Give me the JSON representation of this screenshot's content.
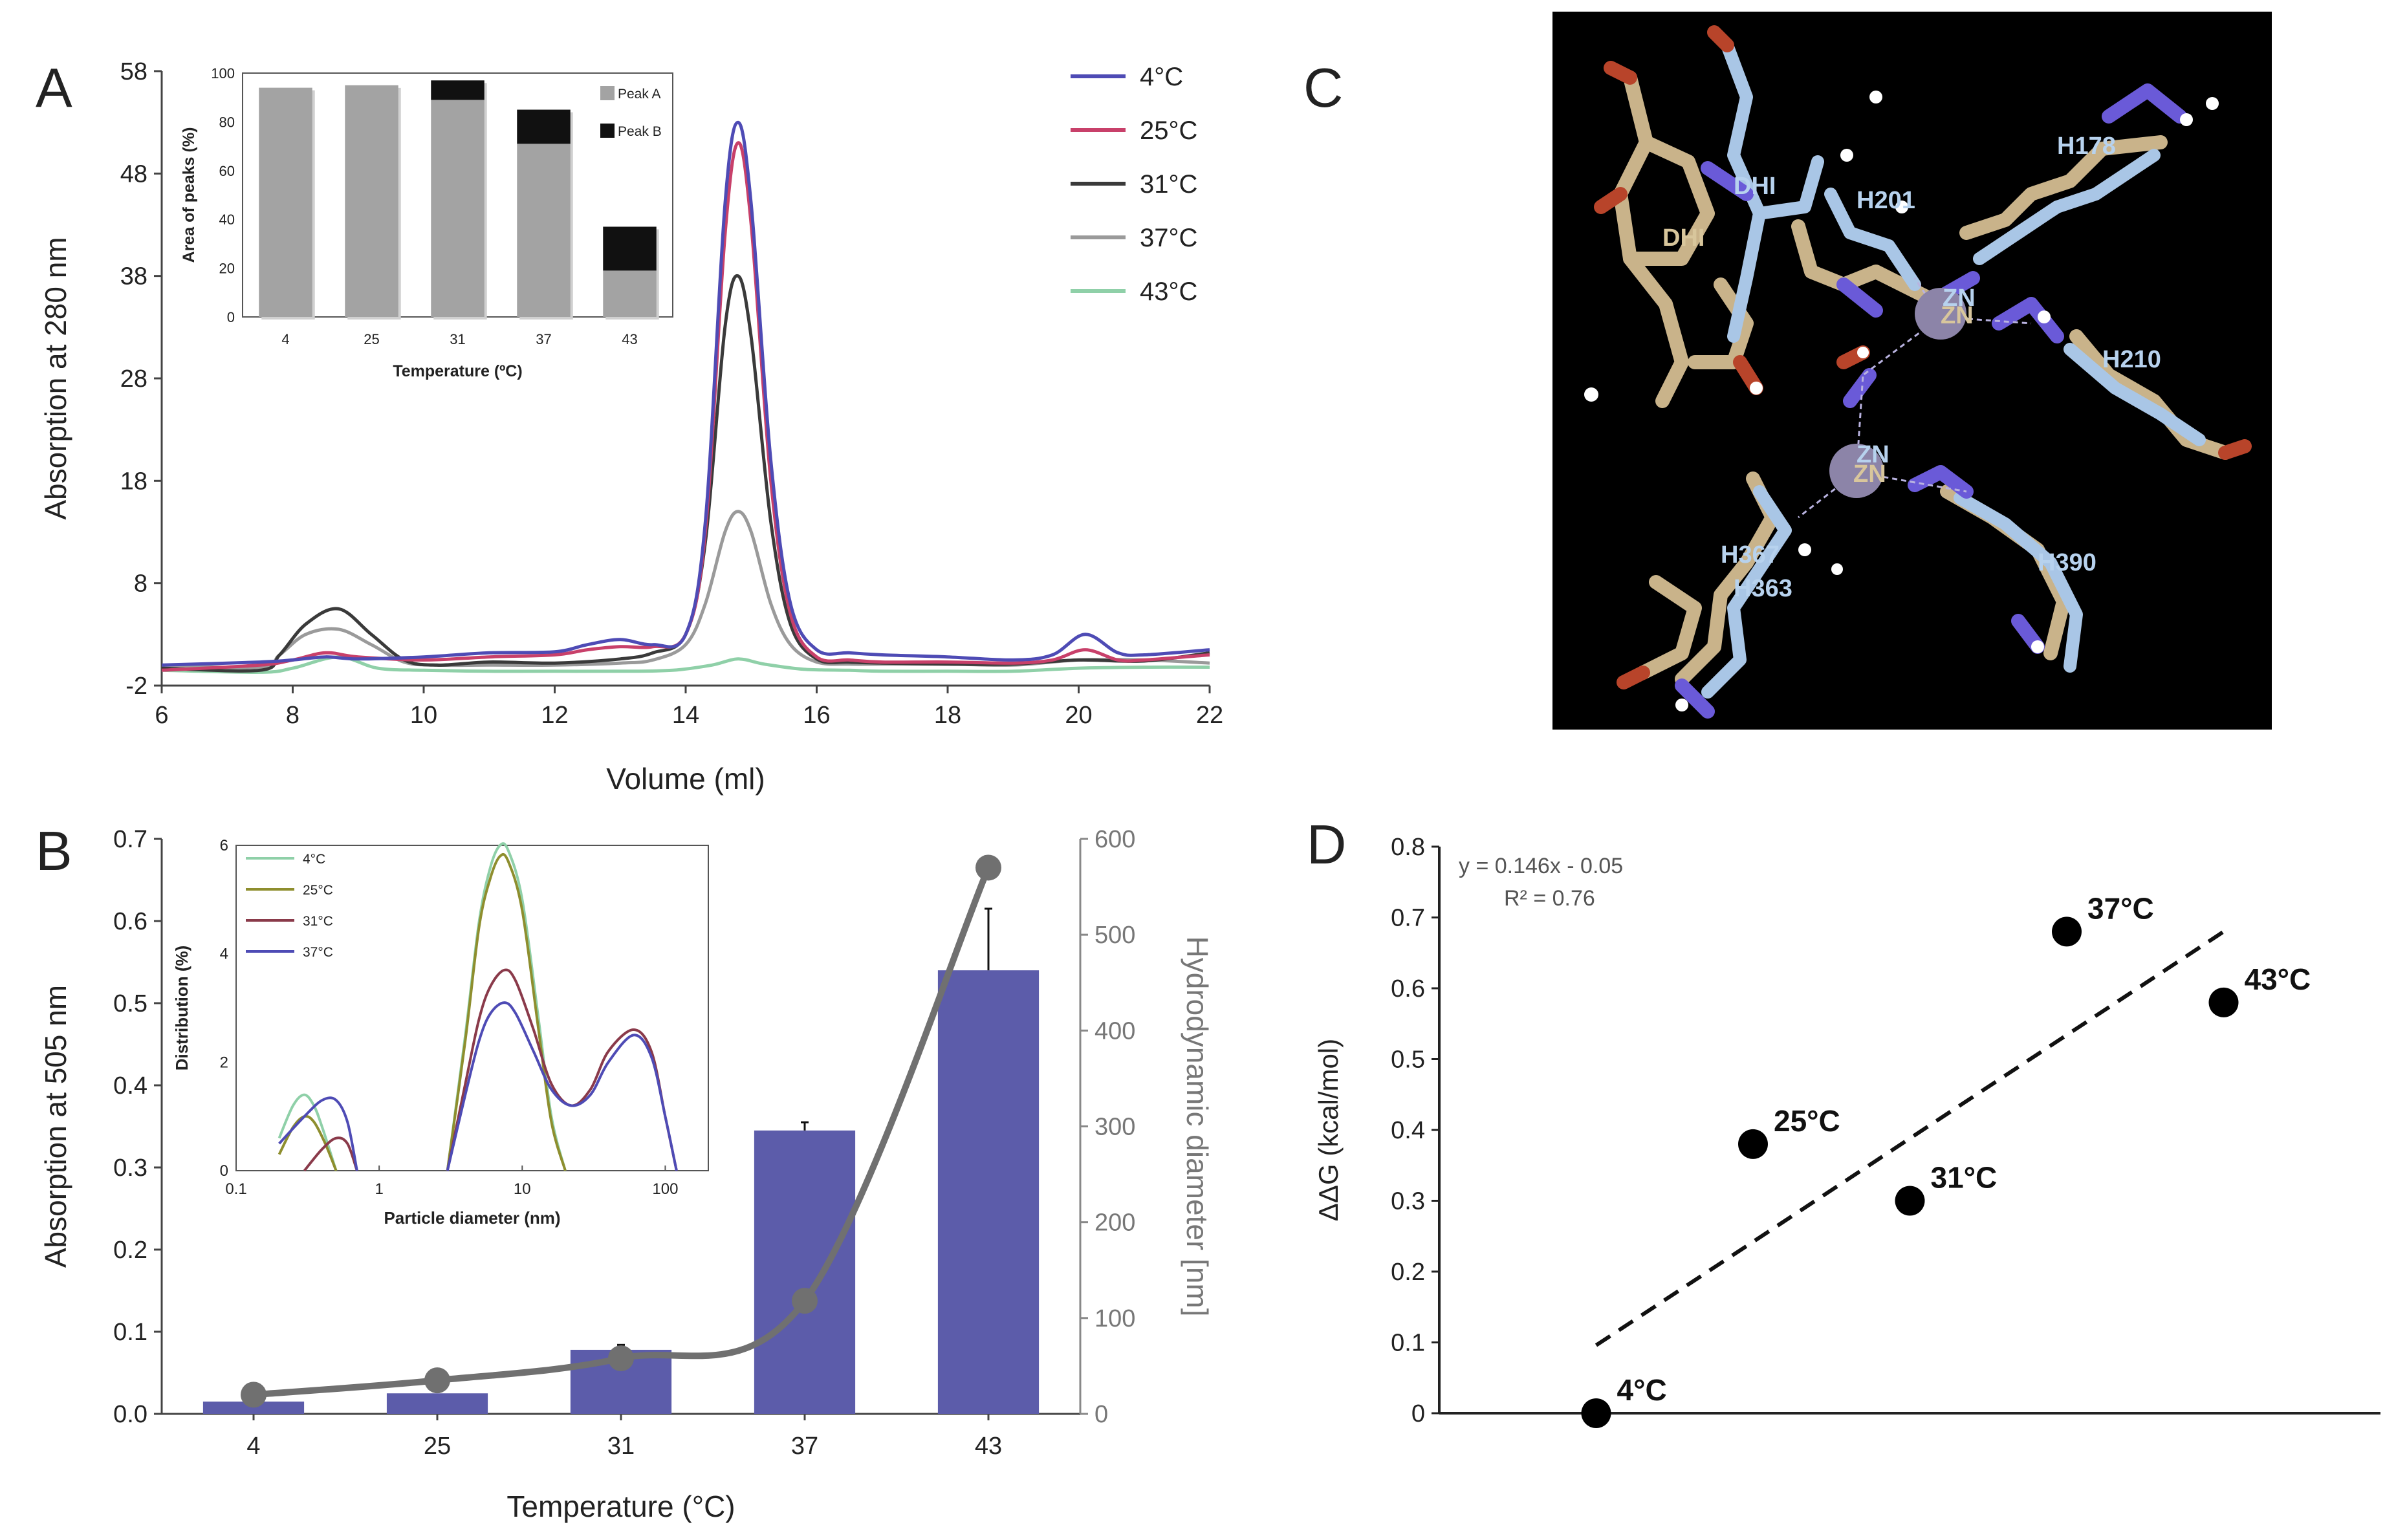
{
  "panel_letters": {
    "a": "A",
    "b": "B",
    "c": "C",
    "d": "D"
  },
  "colors": {
    "c4": "#4e4bb5",
    "c25": "#c8406a",
    "c31": "#3a3a3a",
    "c37": "#9a9a9a",
    "c43": "#8fd0a8",
    "bar": "#5c5caa",
    "line": "#707070",
    "peakA": "#a3a3a3",
    "peakB": "#111111"
  },
  "chart_data": [
    {
      "id": "A",
      "type": "line",
      "title": "",
      "xlabel": "Volume (ml)",
      "ylabel": "Absorption at 280 nm",
      "xlim": [
        6,
        22
      ],
      "ylim": [
        -2,
        58
      ],
      "xticks": [
        "6",
        "8",
        "10",
        "12",
        "14",
        "16",
        "18",
        "20",
        "22"
      ],
      "yticks": [
        "-2",
        "8",
        "18",
        "28",
        "38",
        "48",
        "58"
      ],
      "legend": [
        "4°C",
        "25°C",
        "31°C",
        "37°C",
        "43°C"
      ],
      "series": [
        {
          "name": "4°C",
          "x": [
            6,
            7.5,
            8,
            8.5,
            9,
            10,
            11,
            12,
            12.5,
            13,
            13.5,
            14,
            14.3,
            14.6,
            14.8,
            15,
            15.3,
            15.6,
            16,
            16.5,
            17,
            18,
            19,
            19.6,
            20.1,
            20.6,
            21,
            22
          ],
          "y": [
            0,
            0.3,
            0.5,
            0.8,
            0.6,
            0.8,
            1.2,
            1.3,
            2,
            2.5,
            2,
            3,
            14,
            45,
            53,
            45,
            20,
            6,
            1.5,
            1.2,
            1.0,
            0.8,
            0.5,
            1.0,
            3,
            1.2,
            1,
            1.5
          ]
        },
        {
          "name": "25°C",
          "x": [
            6,
            7.5,
            8,
            8.5,
            9,
            10,
            11,
            12,
            12.5,
            13,
            13.5,
            14,
            14.3,
            14.6,
            14.8,
            15,
            15.3,
            15.6,
            16,
            16.5,
            17,
            18,
            19,
            19.6,
            20.1,
            20.6,
            21,
            22
          ],
          "y": [
            -0.5,
            0,
            0.5,
            1.2,
            0.8,
            0.5,
            0.8,
            1,
            1.5,
            1.8,
            1.8,
            3,
            13,
            42,
            51,
            43,
            18,
            5,
            0.8,
            0.5,
            0.3,
            0.3,
            0.2,
            0.5,
            1.5,
            0.5,
            0.5,
            1
          ]
        },
        {
          "name": "31°C",
          "x": [
            6,
            7.5,
            7.8,
            8.2,
            8.7,
            9.2,
            9.7,
            10.2,
            11,
            12,
            13,
            13.5,
            14,
            14.3,
            14.6,
            14.8,
            15,
            15.3,
            15.6,
            16,
            16.5,
            17,
            18,
            19,
            20,
            21,
            22
          ],
          "y": [
            -0.3,
            -0.5,
            1,
            4,
            5.5,
            3,
            0.5,
            0,
            0.3,
            0.2,
            0.6,
            1.2,
            3,
            12,
            33,
            38,
            32,
            14,
            4,
            0.6,
            0.3,
            0.2,
            0.1,
            0.1,
            0.5,
            0.4,
            1.2
          ]
        },
        {
          "name": "37°C",
          "x": [
            6,
            7.5,
            7.8,
            8.2,
            8.7,
            9.2,
            9.7,
            10.2,
            11,
            12,
            13,
            13.5,
            14,
            14.3,
            14.6,
            14.8,
            15,
            15.3,
            15.6,
            16,
            16.5,
            17,
            18,
            19,
            20,
            21,
            22
          ],
          "y": [
            0,
            -0.2,
            1,
            3,
            3.5,
            2,
            0.3,
            0,
            0,
            0,
            0.2,
            0.5,
            2,
            6,
            13,
            15,
            13,
            6,
            2,
            0.3,
            0.1,
            0.1,
            0.1,
            0,
            0.5,
            0.5,
            0.2
          ]
        },
        {
          "name": "43°C",
          "x": [
            6,
            7.5,
            8,
            8.7,
            9.3,
            10,
            11,
            12,
            13,
            13.8,
            14.4,
            14.8,
            15.2,
            15.8,
            16.5,
            17,
            18,
            19,
            20,
            21,
            22
          ],
          "y": [
            -0.5,
            -0.7,
            -0.3,
            0.8,
            -0.3,
            -0.5,
            -0.6,
            -0.6,
            -0.6,
            -0.5,
            0,
            0.6,
            0.1,
            -0.4,
            -0.5,
            -0.6,
            -0.6,
            -0.6,
            -0.3,
            -0.2,
            -0.2
          ]
        }
      ]
    },
    {
      "id": "A-inset",
      "type": "bar",
      "title": "",
      "xlabel": "Temperature (ºC)",
      "ylabel": "Area of peaks (%)",
      "ylim": [
        0,
        100
      ],
      "categories": [
        "4",
        "25",
        "31",
        "37",
        "43"
      ],
      "yticks": [
        "0",
        "20",
        "40",
        "60",
        "80",
        "100"
      ],
      "legend": [
        "Peak A",
        "Peak B"
      ],
      "series": [
        {
          "name": "Peak A",
          "values": [
            94,
            95,
            89,
            71,
            19
          ]
        },
        {
          "name": "Peak B",
          "values": [
            0,
            0,
            8,
            14,
            18
          ]
        }
      ]
    },
    {
      "id": "B",
      "type": "bar",
      "title": "",
      "xlabel": "Temperature (°C)",
      "ylabel": "Absorption at 505 nm",
      "y2label": "Hydrodynamic diameter [nm]",
      "ylim": [
        0,
        0.7
      ],
      "y2lim": [
        0,
        600
      ],
      "categories": [
        "4",
        "25",
        "31",
        "37",
        "43"
      ],
      "yticks": [
        "0.0",
        "0.1",
        "0.2",
        "0.3",
        "0.4",
        "0.5",
        "0.6",
        "0.7"
      ],
      "y2ticks": [
        "0",
        "100",
        "200",
        "300",
        "400",
        "500",
        "600"
      ],
      "series": [
        {
          "name": "Absorption at 505 nm",
          "kind": "bar",
          "values": [
            0.015,
            0.025,
            0.078,
            0.345,
            0.54
          ],
          "errors": [
            0,
            0,
            0.006,
            0.01,
            0.075
          ]
        },
        {
          "name": "Hydrodynamic diameter",
          "kind": "line",
          "axis": "y2",
          "values": [
            20,
            35,
            58,
            118,
            570
          ]
        }
      ]
    },
    {
      "id": "B-inset",
      "type": "line",
      "title": "",
      "xlabel": "Particle diameter (nm)",
      "ylabel": "Distribution (%)",
      "xscale": "log",
      "xlim": [
        0.1,
        200
      ],
      "ylim": [
        0,
        6
      ],
      "xticks": [
        "0.1",
        "1",
        "10",
        "100"
      ],
      "yticks": [
        "0",
        "2",
        "4",
        "6"
      ],
      "legend": [
        "4°C",
        "25°C",
        "31°C",
        "37°C"
      ],
      "series": [
        {
          "name": "4°C",
          "x": [
            0.2,
            0.25,
            0.3,
            0.35,
            0.4,
            0.5,
            3,
            4,
            5,
            6,
            7,
            8,
            10,
            13,
            16,
            20
          ],
          "y": [
            0.6,
            1.2,
            1.4,
            1.2,
            0.8,
            0.0,
            0.0,
            2.5,
            4.6,
            5.6,
            6.0,
            5.9,
            5.0,
            2.8,
            1.0,
            0.0
          ]
        },
        {
          "name": "25°C",
          "x": [
            0.2,
            0.25,
            0.3,
            0.35,
            0.42,
            0.5,
            3,
            4,
            5,
            6,
            7,
            8,
            10,
            13,
            16,
            20
          ],
          "y": [
            0.3,
            0.8,
            1.0,
            0.9,
            0.5,
            0.0,
            0.0,
            2.4,
            4.5,
            5.4,
            5.8,
            5.7,
            4.8,
            2.6,
            0.9,
            0.0
          ]
        },
        {
          "name": "31°C",
          "x": [
            0.3,
            0.4,
            0.5,
            0.6,
            0.7,
            3,
            4,
            5,
            6,
            7.5,
            9,
            12,
            16,
            22,
            30,
            40,
            60,
            80,
            100,
            120
          ],
          "y": [
            0.0,
            0.4,
            0.6,
            0.5,
            0.0,
            0.0,
            1.6,
            2.8,
            3.4,
            3.7,
            3.5,
            2.6,
            1.6,
            1.2,
            1.5,
            2.2,
            2.6,
            2.2,
            1.0,
            0.0
          ]
        },
        {
          "name": "37°C",
          "x": [
            0.2,
            0.3,
            0.4,
            0.5,
            0.6,
            0.7,
            3,
            4,
            5,
            6,
            7.5,
            9,
            12,
            16,
            22,
            30,
            40,
            60,
            80,
            100,
            120
          ],
          "y": [
            0.5,
            1.0,
            1.3,
            1.3,
            0.9,
            0.0,
            0.0,
            1.4,
            2.4,
            2.9,
            3.1,
            2.9,
            2.2,
            1.5,
            1.2,
            1.4,
            2.0,
            2.5,
            2.1,
            1.0,
            0.0
          ]
        }
      ]
    },
    {
      "id": "D",
      "type": "scatter",
      "title": "",
      "xlabel": "",
      "ylabel": "ΔΔG (kcal/mol)",
      "xlim": [
        0,
        6
      ],
      "ylim": [
        0,
        0.8
      ],
      "yticks": [
        "0",
        "0.1",
        "0.2",
        "0.3",
        "0.4",
        "0.5",
        "0.6",
        "0.7",
        "0.8"
      ],
      "equation": "y = 0.146x - 0.05",
      "r2": "R² = 0.76",
      "trend": {
        "slope": 0.146,
        "intercept": -0.05,
        "x_from": 1,
        "x_to": 5
      },
      "points": [
        {
          "label": "4°C",
          "x": 1,
          "y": 0
        },
        {
          "label": "25°C",
          "x": 2,
          "y": 0.38
        },
        {
          "label": "31°C",
          "x": 3,
          "y": 0.3
        },
        {
          "label": "37°C",
          "x": 4,
          "y": 0.68
        },
        {
          "label": "43°C",
          "x": 5,
          "y": 0.58
        }
      ]
    }
  ],
  "structure_labels": [
    "DHI",
    "DHI",
    "H201",
    "H178",
    "ZN",
    "ZN",
    "H210",
    "ZN",
    "ZN",
    "H367",
    "H363",
    "H390"
  ]
}
